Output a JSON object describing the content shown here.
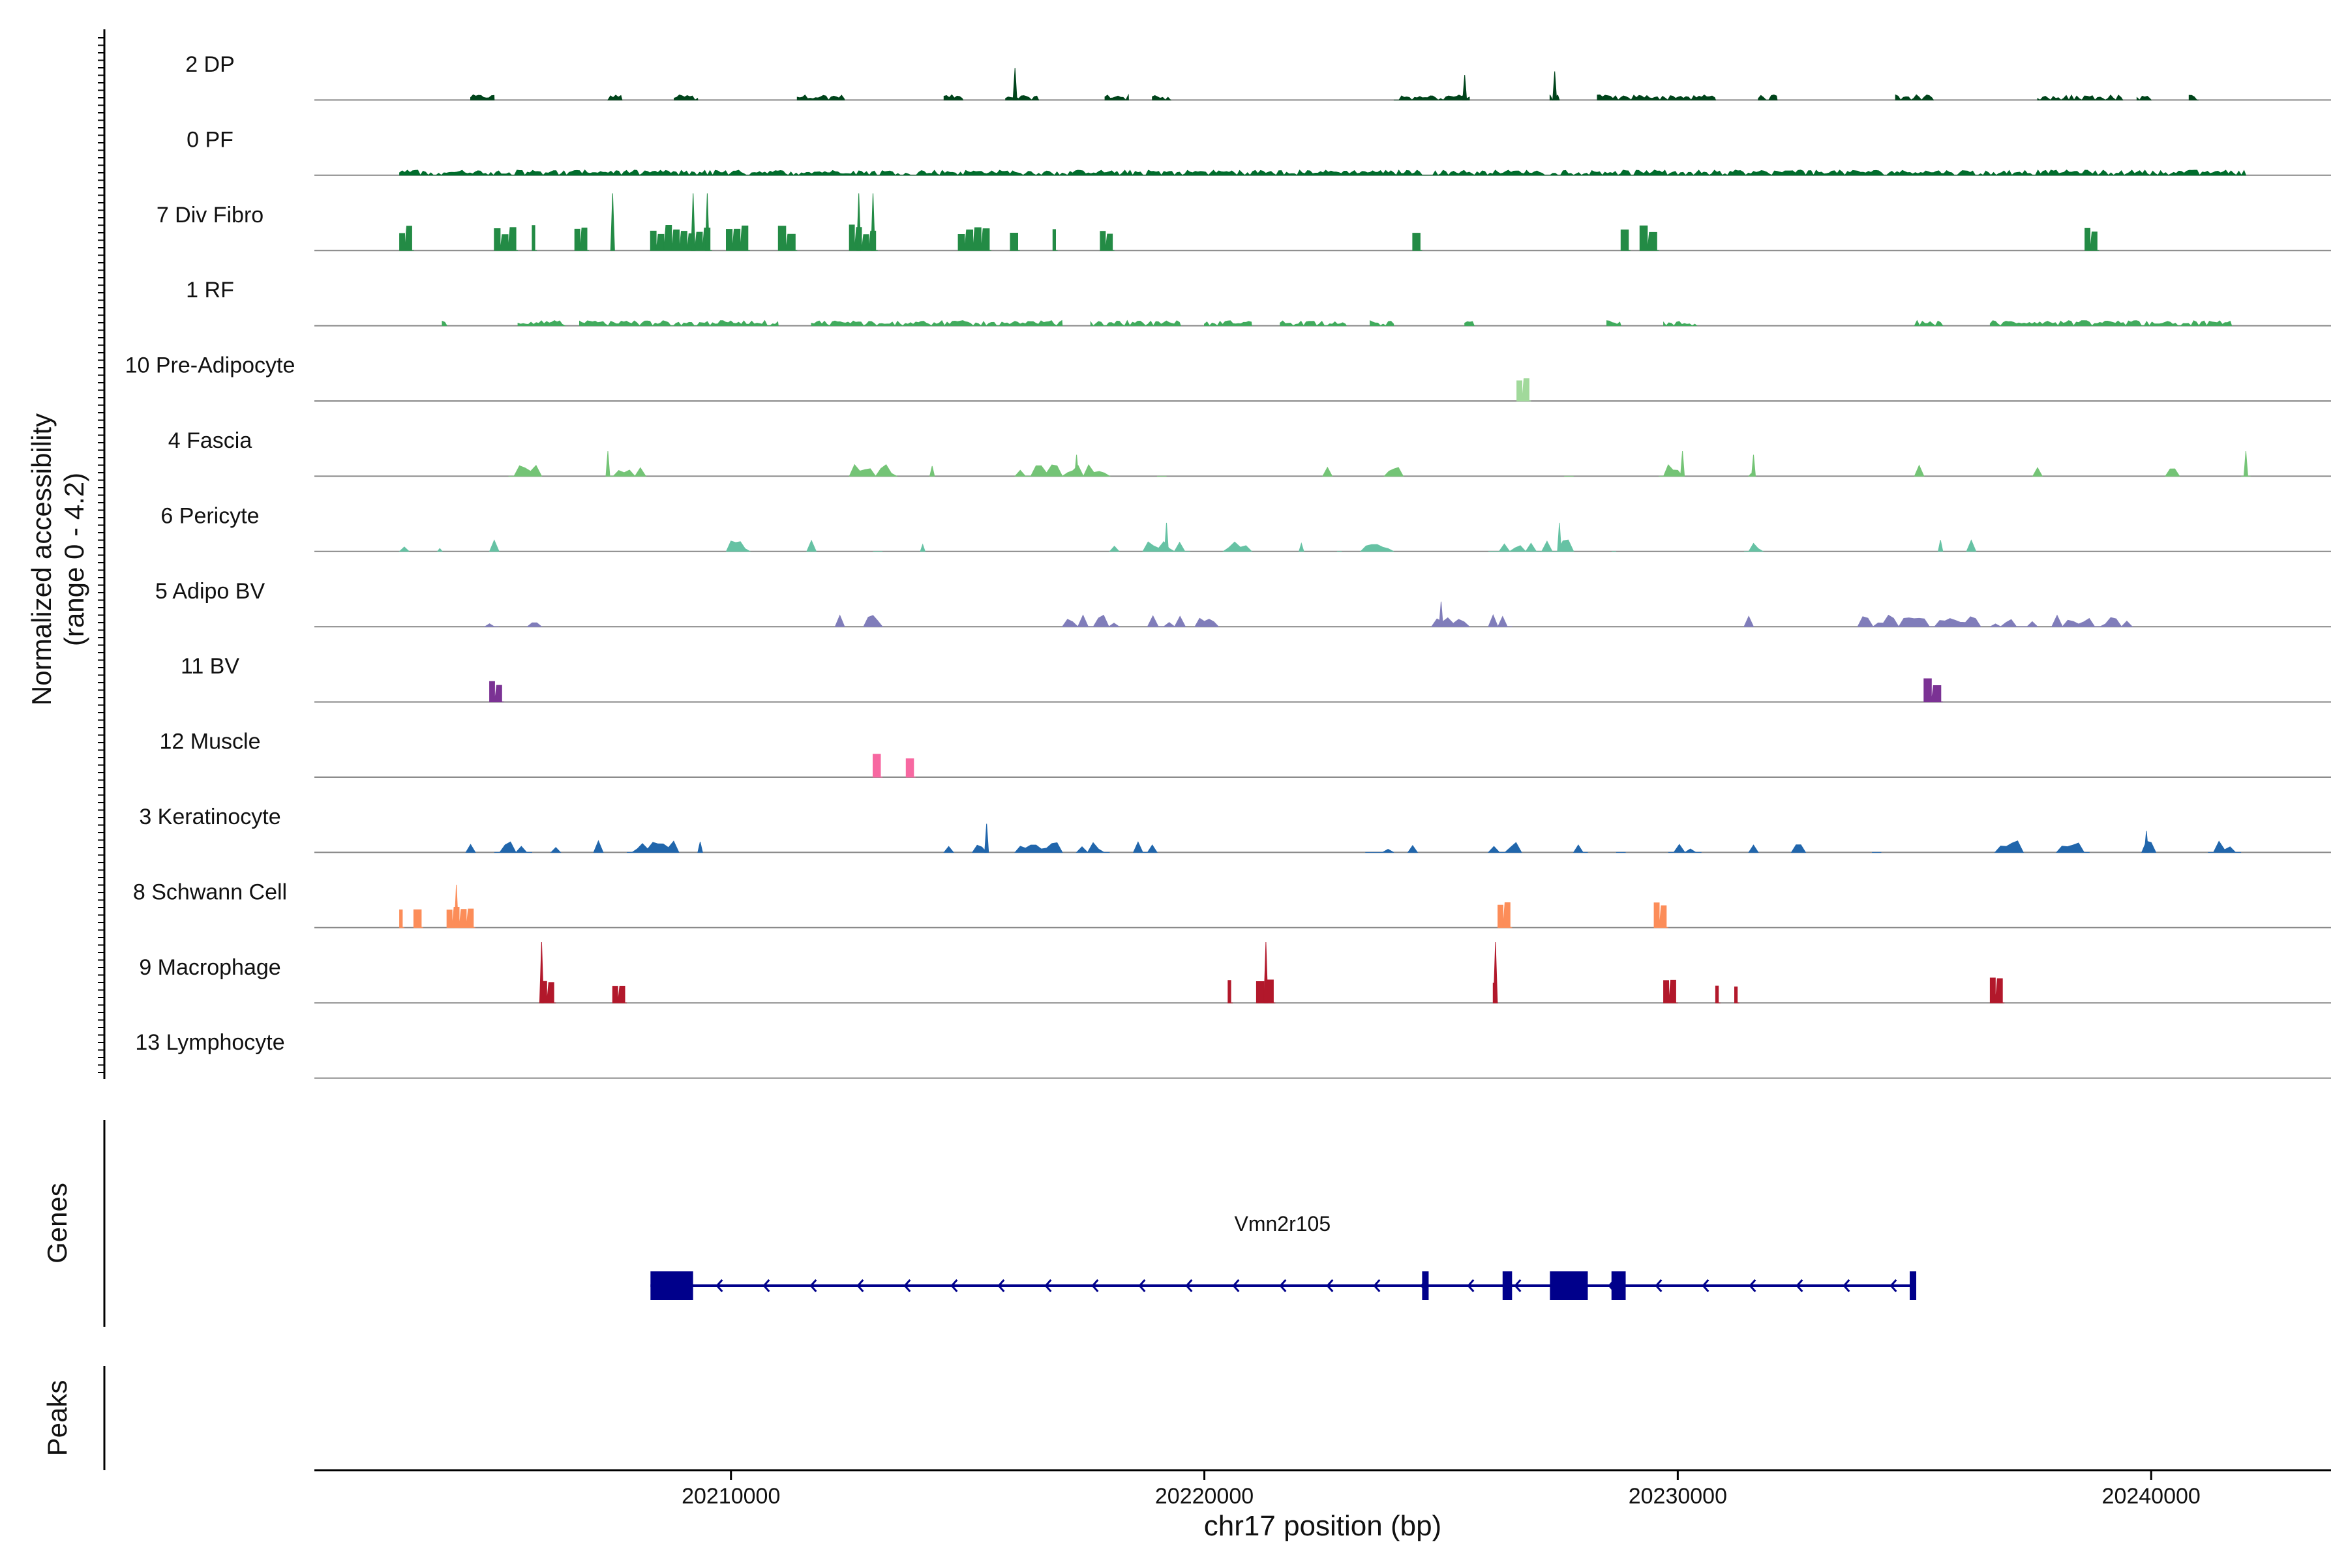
{
  "chart_data": {
    "type": "genome_browser_coverage",
    "y_axis_label_line1": "Normalized accessibility",
    "y_axis_label_line2": "(range 0 - 4.2)",
    "y_range": [
      0,
      4.2
    ],
    "xlabel": "chr17 position (bp)",
    "xlim": [
      20201200,
      20243800
    ],
    "x_ticks": [
      20210000,
      20220000,
      20230000,
      20240000
    ],
    "x_tick_labels": [
      "20210000",
      "20220000",
      "20230000",
      "20240000"
    ],
    "genes_label": "Genes",
    "peaks_label": "Peaks",
    "tracks": [
      {
        "name": "2 DP",
        "color": "#00441b",
        "style": "smear",
        "regions": [
          [
            20204500,
            20205000
          ],
          [
            20207400,
            20207700
          ],
          [
            20208800,
            20209300
          ],
          [
            20211400,
            20212400
          ],
          [
            20214500,
            20214900
          ],
          [
            20215800,
            20216500
          ],
          [
            20217900,
            20218400
          ],
          [
            20218900,
            20219300
          ],
          [
            20224000,
            20225600
          ],
          [
            20227300,
            20227500
          ],
          [
            20228300,
            20230800
          ],
          [
            20231700,
            20232100
          ],
          [
            20234600,
            20235400
          ],
          [
            20237600,
            20239400
          ],
          [
            20239700,
            20240000
          ],
          [
            20240800,
            20241000
          ]
        ],
        "peaks": [
          [
            20216000,
            0.45
          ],
          [
            20225500,
            0.35
          ],
          [
            20227400,
            0.4
          ]
        ]
      },
      {
        "name": "0 PF",
        "color": "#006d2c",
        "style": "smear",
        "regions": [
          [
            20203000,
            20242000
          ]
        ],
        "peaks": []
      },
      {
        "name": "7 Div Fibro",
        "color": "#238b45",
        "style": "blocks",
        "regions": [
          [
            20203000,
            20203300
          ],
          [
            20205000,
            20205500
          ],
          [
            20205800,
            20205900
          ],
          [
            20206700,
            20207000
          ],
          [
            20208300,
            20209600
          ],
          [
            20209900,
            20210400
          ],
          [
            20211000,
            20211400
          ],
          [
            20212500,
            20213100
          ],
          [
            20214800,
            20215500
          ],
          [
            20215900,
            20216100
          ],
          [
            20216800,
            20216900
          ],
          [
            20217800,
            20218100
          ],
          [
            20224400,
            20224600
          ],
          [
            20228800,
            20229000
          ],
          [
            20229200,
            20229600
          ],
          [
            20238600,
            20238900
          ]
        ],
        "peaks": [
          [
            20207500,
            0.8
          ],
          [
            20209200,
            0.8
          ],
          [
            20209500,
            0.8
          ],
          [
            20212700,
            0.8
          ],
          [
            20213000,
            0.8
          ]
        ]
      },
      {
        "name": "1 RF",
        "color": "#41ab5d",
        "style": "smear",
        "regions": [
          [
            20203900,
            20204000
          ],
          [
            20205500,
            20206500
          ],
          [
            20206800,
            20211000
          ],
          [
            20211700,
            20217000
          ],
          [
            20217600,
            20219500
          ],
          [
            20220000,
            20221000
          ],
          [
            20221600,
            20223000
          ],
          [
            20223500,
            20224000
          ],
          [
            20225500,
            20225700
          ],
          [
            20228500,
            20228800
          ],
          [
            20229700,
            20230400
          ],
          [
            20235000,
            20235600
          ],
          [
            20236600,
            20241700
          ]
        ],
        "peaks": []
      },
      {
        "name": "10 Pre-Adipocyte",
        "color": "#a1d99b",
        "style": "blocks",
        "regions": [
          [
            20226600,
            20226900
          ]
        ],
        "peaks": []
      },
      {
        "name": "4 Fascia",
        "color": "#74c476",
        "style": "spikes",
        "regions": [
          [
            20205300,
            20206000
          ],
          [
            20207400,
            20208200
          ],
          [
            20212500,
            20213500
          ],
          [
            20214200,
            20214300
          ],
          [
            20216000,
            20218000
          ],
          [
            20219000,
            20219200
          ],
          [
            20222500,
            20222700
          ],
          [
            20223800,
            20224200
          ],
          [
            20227600,
            20227800
          ],
          [
            20229600,
            20230100
          ],
          [
            20231500,
            20231600
          ],
          [
            20235000,
            20235200
          ],
          [
            20237500,
            20237700
          ],
          [
            20240300,
            20240600
          ],
          [
            20241900,
            20242100
          ]
        ],
        "peaks": [
          [
            20207400,
            0.35
          ],
          [
            20217300,
            0.3
          ],
          [
            20230100,
            0.35
          ],
          [
            20231600,
            0.3
          ],
          [
            20242000,
            0.35
          ]
        ]
      },
      {
        "name": "6 Pericyte",
        "color": "#66c2a4",
        "style": "spikes",
        "regions": [
          [
            20203000,
            20203200
          ],
          [
            20203800,
            20203900
          ],
          [
            20204900,
            20205100
          ],
          [
            20209900,
            20210400
          ],
          [
            20211600,
            20211800
          ],
          [
            20213000,
            20213200
          ],
          [
            20214000,
            20214100
          ],
          [
            20218000,
            20218200
          ],
          [
            20218700,
            20219700
          ],
          [
            20220400,
            20221000
          ],
          [
            20222000,
            20222100
          ],
          [
            20222800,
            20222900
          ],
          [
            20223300,
            20224000
          ],
          [
            20226000,
            20227800
          ],
          [
            20228600,
            20228700
          ],
          [
            20231400,
            20231800
          ],
          [
            20235500,
            20235600
          ],
          [
            20236100,
            20236300
          ]
        ],
        "peaks": [
          [
            20219200,
            0.4
          ],
          [
            20227500,
            0.4
          ]
        ]
      },
      {
        "name": "5 Adipo BV",
        "color": "#807dba",
        "style": "spikes",
        "regions": [
          [
            20204800,
            20205100
          ],
          [
            20205700,
            20206000
          ],
          [
            20212200,
            20212400
          ],
          [
            20212800,
            20213200
          ],
          [
            20217000,
            20218200
          ],
          [
            20218800,
            20219600
          ],
          [
            20219800,
            20220300
          ],
          [
            20224800,
            20225600
          ],
          [
            20226000,
            20226500
          ],
          [
            20231400,
            20231600
          ],
          [
            20233800,
            20236400
          ],
          [
            20236600,
            20237600
          ],
          [
            20237900,
            20239600
          ]
        ],
        "peaks": [
          [
            20225000,
            0.35
          ]
        ]
      },
      {
        "name": "11 BV",
        "color": "#7b3294",
        "style": "blocks",
        "regions": [
          [
            20204900,
            20205200
          ],
          [
            20235200,
            20235600
          ]
        ],
        "peaks": []
      },
      {
        "name": "12 Muscle",
        "color": "#f768a1",
        "style": "blocks",
        "regions": [
          [
            20213000,
            20213200
          ],
          [
            20213700,
            20213900
          ]
        ],
        "peaks": []
      },
      {
        "name": "3 Keratinocyte",
        "color": "#2166ac",
        "style": "spikes",
        "regions": [
          [
            20204400,
            20204600
          ],
          [
            20205000,
            20205800
          ],
          [
            20206200,
            20206400
          ],
          [
            20207100,
            20207300
          ],
          [
            20207800,
            20208900
          ],
          [
            20209300,
            20209400
          ],
          [
            20214500,
            20214700
          ],
          [
            20215100,
            20215400
          ],
          [
            20216000,
            20217000
          ],
          [
            20217300,
            20218000
          ],
          [
            20218500,
            20219000
          ],
          [
            20223400,
            20224000
          ],
          [
            20224300,
            20224500
          ],
          [
            20226000,
            20226700
          ],
          [
            20227800,
            20228100
          ],
          [
            20228700,
            20228900
          ],
          [
            20229800,
            20230500
          ],
          [
            20231500,
            20231700
          ],
          [
            20232400,
            20232700
          ],
          [
            20234100,
            20234300
          ],
          [
            20236700,
            20237300
          ],
          [
            20238000,
            20238700
          ],
          [
            20239800,
            20240100
          ],
          [
            20241200,
            20241900
          ]
        ],
        "peaks": [
          [
            20215400,
            0.4
          ],
          [
            20239900,
            0.3
          ]
        ]
      },
      {
        "name": "8 Schwann Cell",
        "color": "#fc8d59",
        "style": "blocks",
        "regions": [
          [
            20203000,
            20203100
          ],
          [
            20203300,
            20203500
          ],
          [
            20204000,
            20204600
          ],
          [
            20226200,
            20226500
          ],
          [
            20229500,
            20229800
          ]
        ],
        "peaks": [
          [
            20204200,
            0.6
          ]
        ]
      },
      {
        "name": "9 Macrophage",
        "color": "#b2182b",
        "style": "blocks",
        "regions": [
          [
            20206000,
            20206300
          ],
          [
            20207500,
            20207800
          ],
          [
            20220500,
            20220600
          ],
          [
            20221100,
            20221500
          ],
          [
            20226100,
            20226200
          ],
          [
            20229700,
            20230000
          ],
          [
            20230800,
            20230900
          ],
          [
            20231200,
            20231300
          ],
          [
            20236600,
            20236900
          ]
        ],
        "peaks": [
          [
            20206000,
            0.85
          ],
          [
            20221300,
            0.85
          ],
          [
            20226150,
            0.85
          ]
        ]
      },
      {
        "name": "13 Lymphocyte",
        "color": "#444444",
        "style": "none",
        "regions": [],
        "peaks": []
      }
    ],
    "gene": {
      "name": "Vmn2r105",
      "strand": "-",
      "color": "#00008b",
      "start": 20208300,
      "end": 20235000,
      "exons": [
        [
          20208300,
          20209200
        ],
        [
          20224600,
          20224700
        ],
        [
          20226300,
          20226500
        ],
        [
          20227300,
          20228100
        ],
        [
          20228600,
          20228900
        ],
        [
          20234900,
          20235000
        ]
      ]
    }
  }
}
